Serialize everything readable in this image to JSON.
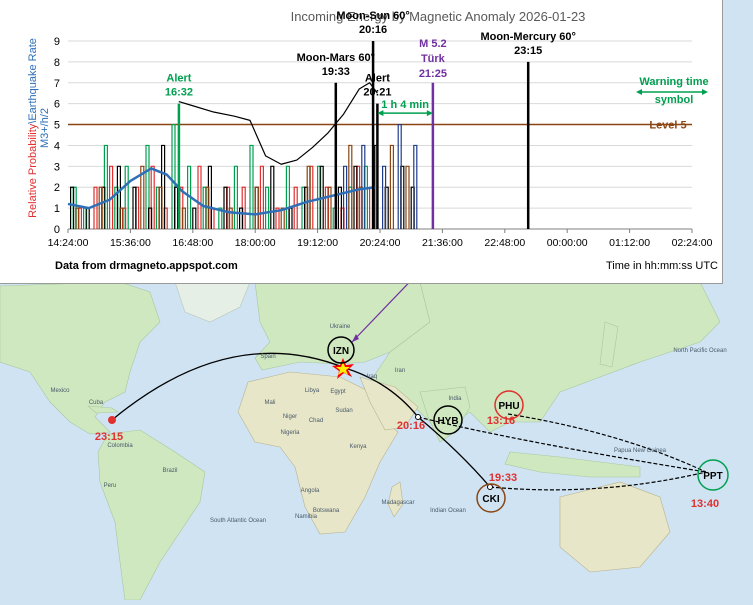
{
  "chart_data": {
    "type": "line",
    "title": "Incoming Energy by Magnetic Anomaly 2026-01-23",
    "ylabel_parts": [
      "Relative Probability",
      "\\",
      "Earthquake Rate",
      "M3+/h/2"
    ],
    "xlabel": "Time in hh:mm:ss UTC",
    "source": "Data from drmagneto.appspot.com",
    "ylim": [
      0,
      9
    ],
    "yticks": [
      "0",
      "1",
      "2",
      "3",
      "4",
      "5",
      "6",
      "7",
      "8",
      "9"
    ],
    "xticks": [
      "14:24:00",
      "15:36:00",
      "16:48:00",
      "18:00:00",
      "19:12:00",
      "20:24:00",
      "21:36:00",
      "22:48:00",
      "00:00:00",
      "01:12:00",
      "02:24:00"
    ],
    "level": {
      "value": 5,
      "label": "Level 5",
      "color": "#8b4513"
    },
    "smooth_curve": {
      "color": "#2e6fb7",
      "x_hours": [
        14.4,
        14.8,
        15.2,
        15.6,
        16.0,
        16.3,
        16.6,
        17.0,
        17.5,
        18.0,
        18.5,
        19.0,
        19.5,
        20.0,
        20.3
      ],
      "values": [
        1.2,
        1.0,
        1.4,
        2.3,
        2.9,
        2.6,
        1.8,
        1.1,
        0.8,
        0.7,
        0.9,
        1.3,
        1.6,
        1.9,
        2.0
      ]
    },
    "envelope": {
      "color": "#000000",
      "x_hours": [
        16.53,
        16.8,
        17.2,
        17.6,
        17.9,
        18.2,
        18.5,
        18.8,
        19.1,
        19.4,
        19.7,
        20.0,
        20.2,
        20.35
      ],
      "values": [
        6.1,
        5.9,
        5.6,
        5.4,
        5.2,
        3.5,
        3.1,
        3.3,
        3.9,
        4.6,
        5.5,
        6.7,
        7.0,
        6.5
      ]
    },
    "markers": [
      {
        "label": "Alert",
        "time": "16:32",
        "x_hours": 16.533,
        "value": 6,
        "color": "#00a050"
      },
      {
        "label": "Moon-Mars 60°",
        "time": "19:33",
        "x_hours": 19.55,
        "value": 7,
        "color": "#000000"
      },
      {
        "label": "Moon-Sun 60°",
        "time": "20:16",
        "x_hours": 20.267,
        "value": 9,
        "color": "#000000"
      },
      {
        "label": "Alert",
        "time": "20:21",
        "x_hours": 20.35,
        "value": 6,
        "color": "#000000"
      },
      {
        "label": "M 5.2",
        "sublabel": "Türk",
        "time": "21:25",
        "x_hours": 21.417,
        "value": 7,
        "color": "#7030a0"
      },
      {
        "label": "Moon-Mercury 60°",
        "time": "23:15",
        "x_hours": 23.25,
        "value": 8,
        "color": "#000000"
      }
    ],
    "warning_span": {
      "label": "1 h 4 min",
      "from_hours": 20.35,
      "to_hours": 21.417,
      "color": "#00a050"
    },
    "legend_note": {
      "line1": "Warning time",
      "line2": "symbol",
      "position": "top-right",
      "color": "#00a050"
    },
    "series": [
      {
        "color": "#00a050",
        "x_hours": [
          14.5,
          14.7,
          15.1,
          15.3,
          15.5,
          15.9,
          16.1,
          16.4,
          16.7,
          17.0,
          17.3,
          17.6,
          17.9,
          18.2,
          18.6,
          18.9,
          19.2,
          19.5,
          19.8,
          20.1
        ],
        "values": [
          2,
          1,
          4,
          2,
          3,
          4,
          2,
          5,
          3,
          2,
          1,
          3,
          4,
          2,
          3,
          2,
          3,
          1,
          2,
          3
        ]
      },
      {
        "color": "#e03030",
        "x_hours": [
          14.6,
          14.9,
          15.2,
          15.45,
          15.7,
          16.0,
          16.25,
          16.55,
          16.9,
          17.15,
          17.45,
          17.75,
          18.1,
          18.4,
          18.75,
          19.05,
          19.35,
          19.65,
          19.95,
          20.2
        ],
        "values": [
          1,
          2,
          3,
          1,
          2,
          3,
          1,
          2,
          3,
          1,
          2,
          2,
          3,
          1,
          2,
          3,
          2,
          1,
          3,
          2
        ]
      },
      {
        "color": "#000000",
        "x_hours": [
          14.45,
          14.75,
          15.05,
          15.35,
          15.65,
          15.95,
          16.2,
          16.45,
          16.8,
          17.1,
          17.4,
          17.7,
          18.0,
          18.3,
          18.65,
          18.95,
          19.25,
          19.6,
          19.9,
          20.3,
          20.5,
          20.8,
          21.0
        ],
        "values": [
          2,
          1,
          2,
          3,
          2,
          1,
          4,
          2,
          1,
          3,
          2,
          1,
          2,
          3,
          1,
          2,
          3,
          2,
          3,
          4,
          2,
          3,
          2
        ]
      },
      {
        "color": "#8b4513",
        "x_hours": [
          14.55,
          15.0,
          15.4,
          15.8,
          16.15,
          16.6,
          17.05,
          17.5,
          18.0,
          18.5,
          19.0,
          19.4,
          19.8,
          20.0,
          20.6,
          20.9
        ],
        "values": [
          1,
          2,
          1,
          3,
          2,
          1,
          2,
          1,
          2,
          1,
          3,
          2,
          4,
          2,
          4,
          3
        ]
      },
      {
        "color": "#1f3d8a",
        "x_hours": [
          19.7,
          20.05,
          20.45,
          20.75,
          21.05
        ],
        "values": [
          3,
          4,
          3,
          5,
          4
        ]
      }
    ]
  },
  "map": {
    "place_labels": [
      "Spain",
      "Egypt",
      "Sudan",
      "Kenya",
      "Angola",
      "Mexico",
      "Cuba",
      "Brazil",
      "Colombia",
      "Peru",
      "India",
      "Iraq",
      "Iran",
      "Libya",
      "Mali",
      "Niger",
      "Chad",
      "Nigeria",
      "Ukraine",
      "Papua New Guinea",
      "South Atlantic Ocean",
      "Indian Ocean",
      "North Pacific Ocean",
      "Madagascar",
      "Namibia",
      "Botswana"
    ],
    "stations": [
      {
        "code": "IZN",
        "color": "#000000"
      },
      {
        "code": "HYB",
        "color": "#000000"
      },
      {
        "code": "PHU",
        "color": "#e03030"
      },
      {
        "code": "CKI",
        "color": "#8b4513"
      },
      {
        "code": "PPT",
        "color": "#00a050"
      }
    ],
    "times": [
      {
        "text": "23:15",
        "color": "#e03030"
      },
      {
        "text": "20:16",
        "color": "#e03030"
      },
      {
        "text": "13:16",
        "color": "#e03030"
      },
      {
        "text": "19:33",
        "color": "#e03030"
      },
      {
        "text": "13:40",
        "color": "#e03030"
      }
    ]
  }
}
